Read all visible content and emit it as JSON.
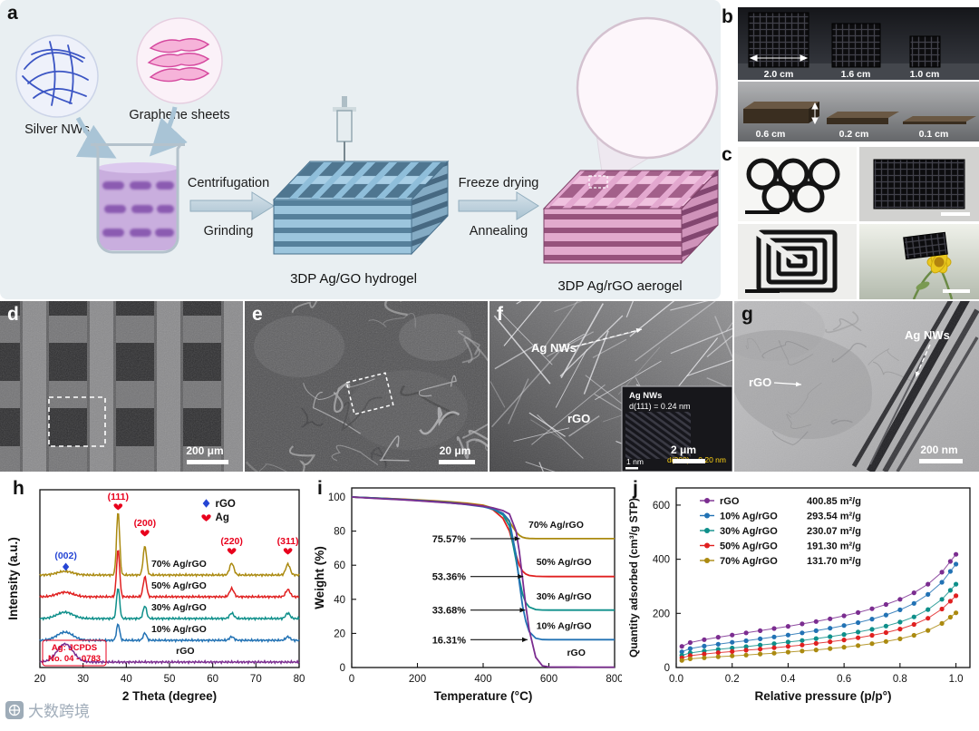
{
  "watermark": {
    "text": "大数跨境"
  },
  "panels": {
    "a": {
      "label": "a",
      "silver_nws": "Silver NWs",
      "graphene_sheets": "Graphene sheets",
      "step1_top": "Centrifugation",
      "step1_bottom": "Grinding",
      "hydrogel": "3DP Ag/GO hydrogel",
      "step2_top": "Freeze drying",
      "step2_bottom": "Annealing",
      "aerogel": "3DP Ag/rGO aerogel"
    },
    "b": {
      "label": "b",
      "top_sizes": [
        "2.0 cm",
        "1.6 cm",
        "1.0 cm"
      ],
      "bottom_sizes": [
        "0.6 cm",
        "0.2 cm",
        "0.1 cm"
      ]
    },
    "c": {
      "label": "c"
    },
    "d": {
      "label": "d",
      "scalebar": "200 μm"
    },
    "e": {
      "label": "e",
      "scalebar": "20 μm"
    },
    "f": {
      "label": "f",
      "ag_label": "Ag NWs",
      "rgo_label": "rGO",
      "scalebar": "2 μm",
      "inset": {
        "line1": "Ag NWs",
        "line2": "d(111) = 0.24 nm",
        "line3": "d(200) = 0.20 nm",
        "scalebar": "1 nm"
      }
    },
    "g": {
      "label": "g",
      "rgo_label": "rGO",
      "ag_label": "Ag NWs",
      "scalebar": "200 nm"
    },
    "h": {
      "label": "h"
    },
    "i": {
      "label": "i"
    },
    "j": {
      "label": "j"
    }
  },
  "chart_data": [
    {
      "id": "h",
      "type": "line",
      "kind": "xrd",
      "xlabel": "2 Theta (degree)",
      "ylabel": "Intensity (a.u.)",
      "xlim": [
        20,
        80
      ],
      "xticks": [
        20,
        30,
        40,
        50,
        60,
        70,
        80
      ],
      "legend": [
        {
          "label": "rGO",
          "marker": "diamond",
          "color": "#2545d4"
        },
        {
          "label": "Ag",
          "marker": "heart",
          "color": "#e8001c"
        }
      ],
      "peak_labels": [
        {
          "text": "(002)",
          "x": 26,
          "marker": "diamond",
          "color": "#2545d4",
          "label_y": 92,
          "marker_y": 101
        },
        {
          "text": "(111)",
          "x": 38.1,
          "marker": "heart",
          "color": "#e8001c",
          "label_y": 27,
          "marker_y": 32
        },
        {
          "text": "(200)",
          "x": 44.3,
          "marker": "heart",
          "color": "#e8001c",
          "label_y": 56,
          "marker_y": 61
        },
        {
          "text": "(220)",
          "x": 64.4,
          "marker": "heart",
          "color": "#e8001c",
          "label_y": 76,
          "marker_y": 81
        },
        {
          "text": "(311)",
          "x": 77.4,
          "marker": "heart",
          "color": "#e8001c",
          "label_y": 76,
          "marker_y": 81
        }
      ],
      "ag_peak_positions": [
        38.1,
        44.3,
        64.4,
        77.4
      ],
      "annotation": [
        "Ag: JCPDS",
        "No. 04 - 0783"
      ],
      "annotation_color": "#e8001c",
      "series": [
        {
          "name": "rGO",
          "color": "#7b2d90",
          "hump": [
            25.8,
            20,
            2.6
          ],
          "ag_peaks": [
            0,
            0,
            0,
            0
          ],
          "label_x": 51.5
        },
        {
          "name": "10% Ag/rGO",
          "color": "#2272b4",
          "hump": [
            25.8,
            9,
            2.6
          ],
          "ag_peaks": [
            18,
            8,
            4,
            4
          ],
          "label_x": 45.8
        },
        {
          "name": "30% Ag/rGO",
          "color": "#0e8f8a",
          "hump": [
            25.8,
            7,
            2.6
          ],
          "ag_peaks": [
            34,
            14,
            6,
            6
          ],
          "label_x": 45.8
        },
        {
          "name": "50% Ag/rGO",
          "color": "#e02020",
          "hump": [
            25.8,
            5,
            2.6
          ],
          "ag_peaks": [
            52,
            22,
            9,
            8
          ],
          "label_x": 45.8
        },
        {
          "name": "70% Ag/rGO",
          "color": "#ab8a10",
          "hump": [
            25.8,
            4,
            2.6
          ],
          "ag_peaks": [
            70,
            32,
            13,
            12
          ],
          "label_x": 45.8
        }
      ]
    },
    {
      "id": "i",
      "type": "line",
      "kind": "tga",
      "xlabel": "Temperature (°C)",
      "ylabel": "Weight (%)",
      "xlim": [
        0,
        800
      ],
      "xticks": [
        0,
        200,
        400,
        600,
        800
      ],
      "ylim": [
        0,
        100
      ],
      "yticks": [
        0,
        20,
        40,
        60,
        80,
        100
      ],
      "x": [
        0,
        50,
        100,
        150,
        200,
        250,
        300,
        350,
        400,
        430,
        460,
        480,
        500,
        510,
        520,
        530,
        540,
        560,
        580,
        600,
        700,
        800
      ],
      "series": [
        {
          "name": "70% Ag/rGO",
          "color": "#ab8a10",
          "label_x": 538,
          "label_y": 82,
          "values": [
            100,
            99.6,
            99.2,
            98.8,
            98.3,
            97.8,
            97.2,
            96.4,
            95.2,
            93.5,
            90,
            85.5,
            79.5,
            77.5,
            76.4,
            75.9,
            75.7,
            75.6,
            75.57,
            75.57,
            75.57,
            75.57
          ]
        },
        {
          "name": "50% Ag/rGO",
          "color": "#e02020",
          "label_x": 562,
          "label_y": 60,
          "values": [
            100,
            99.6,
            99.2,
            98.7,
            98.1,
            97.5,
            96.8,
            96,
            94.8,
            92.5,
            87.5,
            80,
            66,
            60,
            56.5,
            54.8,
            54,
            53.5,
            53.38,
            53.36,
            53.36,
            53.36
          ]
        },
        {
          "name": "30% Ag/rGO",
          "color": "#0e8f8a",
          "label_x": 562,
          "label_y": 40,
          "values": [
            100,
            99.6,
            99.1,
            98.6,
            98,
            97.4,
            96.7,
            95.8,
            94.5,
            92.8,
            89.5,
            83,
            63,
            52,
            43,
            38,
            35.5,
            34,
            33.72,
            33.68,
            33.68,
            33.68
          ]
        },
        {
          "name": "10% Ag/rGO",
          "color": "#2272b4",
          "label_x": 562,
          "label_y": 22.5,
          "values": [
            100,
            99.5,
            99,
            98.5,
            98,
            97.3,
            96.5,
            95.6,
            94.3,
            93,
            90.5,
            86,
            66,
            50,
            36,
            27,
            21,
            17.2,
            16.4,
            16.31,
            16.31,
            16.31
          ]
        },
        {
          "name": "rGO",
          "color": "#7b2d90",
          "label_x": 655,
          "label_y": 7,
          "values": [
            100,
            99.4,
            98.9,
            98.4,
            97.8,
            97.2,
            96.5,
            95.7,
            94.6,
            93.6,
            92,
            90,
            80,
            68,
            52,
            36,
            22,
            6,
            1,
            0.3,
            0.2,
            0.2
          ]
        }
      ],
      "annotations": [
        {
          "text": "75.57%",
          "y": 75.57,
          "tip_x": 512
        },
        {
          "text": "53.36%",
          "y": 53.36,
          "tip_x": 522
        },
        {
          "text": "33.68%",
          "y": 33.68,
          "tip_x": 528
        },
        {
          "text": "16.31%",
          "y": 16.31,
          "tip_x": 535
        }
      ]
    },
    {
      "id": "j",
      "type": "scatter",
      "kind": "isotherm",
      "xlabel": "Relative pressure (p/p°)",
      "ylabel": "Quantity adsorbed (cm³/g STP)",
      "xlim": [
        0,
        1.05
      ],
      "xticks": [
        0.0,
        0.2,
        0.4,
        0.6,
        0.8,
        1.0
      ],
      "ylim": [
        0,
        650
      ],
      "yticks": [
        0,
        200,
        400,
        600
      ],
      "p": [
        0.02,
        0.05,
        0.1,
        0.15,
        0.2,
        0.25,
        0.3,
        0.35,
        0.4,
        0.45,
        0.5,
        0.55,
        0.6,
        0.65,
        0.7,
        0.75,
        0.8,
        0.85,
        0.9,
        0.95,
        0.98,
        1.0
      ],
      "series": [
        {
          "name": "rGO",
          "area": "400.85 m²/g",
          "color": "#7b2d90",
          "values": [
            78,
            92,
            103,
            112,
            120,
            128,
            136,
            144,
            152,
            161,
            170,
            180,
            191,
            203,
            217,
            233,
            252,
            276,
            308,
            352,
            392,
            418
          ]
        },
        {
          "name": "10% Ag/rGO",
          "area": "293.54 m²/g",
          "color": "#2272b4",
          "values": [
            58,
            70,
            79,
            86,
            93,
            99,
            106,
            113,
            120,
            128,
            136,
            145,
            155,
            166,
            179,
            194,
            213,
            237,
            270,
            315,
            355,
            382
          ]
        },
        {
          "name": "30% Ag/rGO",
          "area": "230.07 m²/g",
          "color": "#0e8f8a",
          "values": [
            45,
            54,
            61,
            67,
            72,
            77,
            83,
            88,
            94,
            100,
            107,
            114,
            122,
            131,
            141,
            153,
            168,
            187,
            214,
            252,
            285,
            308
          ]
        },
        {
          "name": "50% Ag/rGO",
          "area": "191.30 m²/g",
          "color": "#e02020",
          "values": [
            36,
            44,
            50,
            55,
            59,
            64,
            68,
            73,
            78,
            83,
            89,
            95,
            102,
            110,
            119,
            129,
            142,
            159,
            182,
            216,
            245,
            265
          ]
        },
        {
          "name": "70% Ag/rGO",
          "area": "131.70 m²/g",
          "color": "#ab8a10",
          "values": [
            26,
            32,
            36,
            40,
            43,
            46,
            50,
            53,
            57,
            61,
            65,
            70,
            75,
            81,
            88,
            96,
            106,
            119,
            137,
            163,
            186,
            202
          ]
        }
      ]
    }
  ]
}
